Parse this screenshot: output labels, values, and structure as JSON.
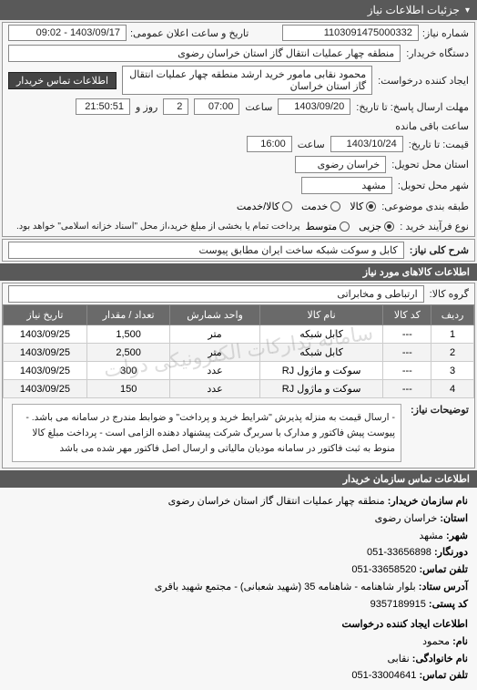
{
  "header": {
    "title": "جزئیات اطلاعات نیاز",
    "chevron": "▾"
  },
  "top": {
    "req_no_label": "شماره نیاز:",
    "req_no": "1103091475000332",
    "announce_label": "تاریخ و ساعت اعلان عمومی:",
    "announce_val": "1403/09/17 - 09:02",
    "buyer_unit_label": "دستگاه خریدار:",
    "buyer_unit": "منطقه چهار عملیات انتقال گاز   استان خراسان رضوی",
    "creator_label": "ایجاد کننده درخواست:",
    "creator": "محمود نقابی مامور خرید ارشد منطقه چهار عملیات انتقال گاز   استان خراسان",
    "contact_btn": "اطلاعات تماس خریدار",
    "deadline_send_label": "مهلت ارسال پاسخ: تا تاریخ:",
    "deadline_send_date": "1403/09/20",
    "time_label": "ساعت",
    "deadline_send_time": "07:00",
    "days_label": "روز و",
    "days_val": "2",
    "remain_label": "ساعت باقی مانده",
    "remain_time": "21:50:51",
    "valid_until_label": "قیمت: تا تاریخ:",
    "valid_until_date": "1403/10/24",
    "valid_until_time": "16:00",
    "deliver_province_label": "استان محل تحویل:",
    "deliver_province": "خراسان رضوی",
    "deliver_city_label": "شهر محل تحویل:",
    "deliver_city": "مشهد",
    "pkg_label": "طبقه بندی موضوعی:",
    "pkg_opts": {
      "goods": "کالا",
      "service": "خدمت",
      "both": "کالا/خدمت"
    },
    "buy_type_label": "نوع فرآیند خرید :",
    "buy_opts": {
      "partial": "جزیی",
      "medium": "متوسط"
    },
    "buy_note": "پرداخت تمام یا بخشی از مبلغ خرید،از محل \"اسناد خزانه اسلامی\" خواهد بود."
  },
  "need": {
    "title_label": "شرح کلی نیاز:",
    "title_val": "کابل و سوکت شبکه  ساخت ایران مطابق پیوست"
  },
  "goods_section": {
    "header": "اطلاعات کالاهای مورد نیاز",
    "group_label": "گروه کالا:",
    "group_val": "ارتباطی و مخابراتی"
  },
  "table": {
    "columns": [
      "ردیف",
      "کد کالا",
      "نام کالا",
      "واحد شمارش",
      "تعداد / مقدار",
      "تاریخ نیاز"
    ],
    "rows": [
      [
        "1",
        "---",
        "کابل شبکه",
        "متر",
        "1,500",
        "1403/09/25"
      ],
      [
        "2",
        "---",
        "کابل شبکه",
        "متر",
        "2,500",
        "1403/09/25"
      ],
      [
        "3",
        "---",
        "سوکت و ماژول RJ",
        "عدد",
        "300",
        "1403/09/25"
      ],
      [
        "4",
        "---",
        "سوکت و ماژول RJ",
        "عدد",
        "150",
        "1403/09/25"
      ]
    ],
    "watermark": "سامانه تدارکات الکترونیکی دولت"
  },
  "notes": {
    "label": "توضیحات نیاز:",
    "text": "- ارسال قیمت به منزله پذیرش \"شرایط خرید و پرداخت\" و ضوابط مندرج در سامانه می باشد. - پیوست پیش فاکتور و مدارک با سربرگ شرکت پیشنهاد دهنده الزامی است - پرداخت مبلغ کالا منوط به ثبت فاکتور در سامانه مودیان مالیاتی و ارسال اصل فاکتور مهر شده می باشد"
  },
  "contact": {
    "header": "اطلاعات تماس سازمان خریدار",
    "org_label": "نام سازمان خریدار:",
    "org_val": "منطقه چهار عملیات انتقال گاز استان خراسان رضوی",
    "prov_label": "استان:",
    "prov_val": "خراسان رضوی",
    "city_label": "شهر:",
    "city_val": "مشهد",
    "fax_label": "دورنگار:",
    "fax_val": "33656898-051",
    "phone_label": "تلفن تماس:",
    "phone_val": "33658520-051",
    "addr_label": "آدرس ستاد:",
    "addr_val": "بلوار شاهنامه - شاهنامه 35 (شهید شعبانی) - مجتمع شهید باقری",
    "post_label": "کد پستی:",
    "post_val": "9357189915",
    "created_by_header": "اطلاعات ایجاد کننده درخواست",
    "name_label": "نام:",
    "name_val": "محمود",
    "lname_label": "نام خانوادگی:",
    "lname_val": "نقابی",
    "cphone_label": "تلفن تماس:",
    "cphone_val": "33004641-051"
  }
}
